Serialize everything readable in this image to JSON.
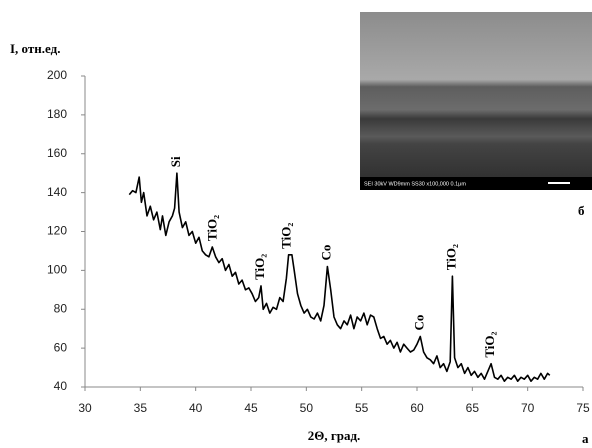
{
  "chart_data": {
    "type": "line",
    "ylabel": "I, отн.ед.",
    "xlabel": "2Θ, град.",
    "panel_label": "а",
    "inset_label": "б",
    "inset_caption": "SEI   30kV   WD9mm   SS30        x100,000  0.1μm",
    "color": "#000000",
    "xlim": [
      30,
      75
    ],
    "xticks": [
      30,
      35,
      40,
      45,
      50,
      55,
      60,
      65,
      70,
      75
    ],
    "ylim": [
      40,
      200
    ],
    "yticks": [
      40,
      60,
      80,
      100,
      120,
      140,
      160,
      180,
      200
    ],
    "grid": false,
    "annotations": [
      {
        "text": "Si",
        "x": 38.3
      },
      {
        "text": "TiO₂",
        "x": 41.6
      },
      {
        "text": "TiO₂",
        "x": 45.9
      },
      {
        "text": "TiO₂",
        "x": 48.3
      },
      {
        "text": "Co",
        "x": 51.9
      },
      {
        "text": "Co",
        "x": 60.3
      },
      {
        "text": "TiO₂",
        "x": 63.2
      },
      {
        "text": "TiO₂",
        "x": 66.7
      }
    ],
    "x": [
      34.0,
      34.3,
      34.6,
      34.9,
      35.1,
      35.3,
      35.6,
      35.9,
      36.2,
      36.5,
      36.8,
      37.0,
      37.3,
      37.6,
      37.9,
      38.1,
      38.3,
      38.5,
      38.8,
      39.1,
      39.4,
      39.7,
      40.0,
      40.3,
      40.6,
      40.9,
      41.2,
      41.5,
      41.8,
      42.1,
      42.4,
      42.7,
      43.0,
      43.3,
      43.6,
      43.9,
      44.2,
      44.5,
      44.8,
      45.1,
      45.4,
      45.7,
      45.9,
      46.1,
      46.4,
      46.7,
      47.0,
      47.3,
      47.6,
      47.9,
      48.2,
      48.4,
      48.7,
      48.9,
      49.2,
      49.5,
      49.8,
      50.1,
      50.4,
      50.7,
      51.0,
      51.3,
      51.6,
      51.9,
      52.2,
      52.5,
      52.8,
      53.1,
      53.4,
      53.7,
      54.0,
      54.3,
      54.6,
      54.9,
      55.2,
      55.5,
      55.8,
      56.1,
      56.4,
      56.7,
      57.0,
      57.3,
      57.6,
      57.9,
      58.2,
      58.5,
      58.8,
      59.1,
      59.4,
      59.7,
      60.0,
      60.3,
      60.6,
      60.9,
      61.2,
      61.5,
      61.8,
      62.1,
      62.4,
      62.7,
      63.0,
      63.2,
      63.4,
      63.7,
      64.0,
      64.3,
      64.6,
      64.9,
      65.2,
      65.5,
      65.8,
      66.1,
      66.4,
      66.7,
      67.0,
      67.3,
      67.6,
      67.9,
      68.2,
      68.5,
      68.8,
      69.1,
      69.4,
      69.7,
      70.0,
      70.3,
      70.6,
      70.9,
      71.2,
      71.5,
      71.8,
      72.0
    ],
    "values": [
      139,
      141,
      140,
      148,
      135,
      140,
      128,
      133,
      126,
      130,
      121,
      128,
      118,
      125,
      128,
      132,
      150,
      130,
      122,
      125,
      118,
      120,
      114,
      117,
      110,
      108,
      107,
      112,
      107,
      104,
      106,
      100,
      103,
      97,
      99,
      93,
      95,
      90,
      91,
      88,
      84,
      86,
      92,
      80,
      83,
      78,
      81,
      80,
      86,
      84,
      96,
      108,
      108,
      100,
      88,
      82,
      78,
      80,
      76,
      75,
      78,
      74,
      82,
      102,
      90,
      76,
      72,
      70,
      74,
      72,
      77,
      70,
      76,
      74,
      78,
      72,
      77,
      76,
      70,
      65,
      66,
      62,
      64,
      60,
      63,
      58,
      62,
      60,
      58,
      59,
      62,
      66,
      58,
      55,
      54,
      52,
      56,
      50,
      52,
      48,
      53,
      97,
      55,
      50,
      52,
      47,
      50,
      46,
      48,
      45,
      47,
      44,
      48,
      52,
      45,
      44,
      46,
      43,
      45,
      44,
      46,
      43,
      45,
      44,
      46,
      43,
      45,
      44,
      47,
      44,
      47,
      46
    ]
  }
}
